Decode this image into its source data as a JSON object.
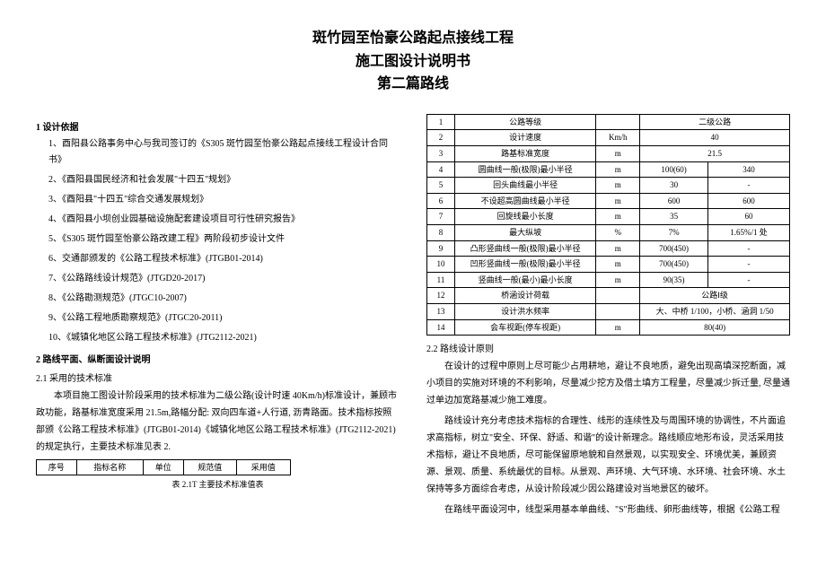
{
  "title": {
    "line1": "斑竹园至怡豪公路起点接线工程",
    "line2": "施工图设计说明书",
    "line3": "第二篇路线"
  },
  "left": {
    "h1": "1 设计依据",
    "items": [
      "1、酉阳县公路事务中心与我司签订的《S305 斑竹园至怡豪公路起点接线工程设计合同书》",
      "2、《酉阳县国民经济和社会发展\"十四五\"规划》",
      "3、《酉阳县\"十四五\"综合交通发展规划》",
      "4、《酉阳县小坝创业园基础设施配套建设项目可行性研究报告》",
      "5、《S305 斑竹园至怡豪公路改建工程》两阶段初步设计文件",
      "6、交通部颁发的《公路工程技术标准》(JTGB01-2014)",
      "7、《公路路线设计规范》(JTGD20-2017)",
      "8、《公路勘测规范》(JTGC10-2007)",
      "9、《公路工程地质勘察规范》(JTGC20-2011)",
      "10、《城镇化地区公路工程技术标准》(JTG2112-2021)"
    ],
    "h2": "2 路线平面、纵断面设计说明",
    "h21": "2.1 采用的技术标准",
    "para1": "本项目施工图设计阶段采用的技术标准为二级公路(设计时速 40Km/h)标准设计，兼顾市政功能，路基标准宽度采用 21.5m,路幅分配: 双向四车道+人行道, 沥青路面。技术指标按照部颁《公路工程技术标准》(JTGB01-2014)《城镇化地区公路工程技术标准》(JTG2112-2021)的规定执行，主要技术标准见表 2.",
    "smallTable": {
      "headers": [
        "序号",
        "指标名称",
        "单位",
        "规范值",
        "采用值"
      ]
    },
    "caption": "表 2.1T 主要技术标准值表"
  },
  "right": {
    "table": {
      "rows": [
        [
          "1",
          "公路等级",
          "",
          "二级公路",
          ""
        ],
        [
          "2",
          "设计速度",
          "Km/h",
          "40",
          ""
        ],
        [
          "3",
          "路基标准宽度",
          "m",
          "21.5",
          ""
        ],
        [
          "4",
          "圆曲线一般(极限)最小半径",
          "m",
          "100(60)",
          "340"
        ],
        [
          "5",
          "回头曲线最小半径",
          "m",
          "30",
          "-"
        ],
        [
          "6",
          "不设超高圆曲线最小半径",
          "m",
          "600",
          "600"
        ],
        [
          "7",
          "回旋线最小长度",
          "m",
          "35",
          "60"
        ],
        [
          "8",
          "最大纵坡",
          "%",
          "7%",
          "1.65%/1 处"
        ],
        [
          "9",
          "凸形竖曲线一般(极限)最小半径",
          "m",
          "700(450)",
          "-"
        ],
        [
          "10",
          "凹形竖曲线一般(极限)最小半径",
          "m",
          "700(450)",
          "-"
        ],
        [
          "11",
          "竖曲线一般(最小)最小长度",
          "m",
          "90(35)",
          "-"
        ],
        [
          "12",
          "桥涵设计荷载",
          "",
          "公路Ⅰ级",
          ""
        ],
        [
          "13",
          "设计洪水频率",
          "",
          "大、中桥 1/100，小桥、涵洞 1/50",
          ""
        ],
        [
          "14",
          "会车视距(停车视距)",
          "m",
          "80(40)",
          ""
        ]
      ]
    },
    "h22": "2.2 路线设计原则",
    "para1": "在设计的过程中原则上尽可能少占用耕地，避让不良地质，避免出现高填深挖断面，减小项目的实施对环境的不利影响，尽量减少挖方及借土填方工程量，尽量减少拆迁量, 尽量通过单边加宽路基减少施工难度。",
    "para2": "路线设计充分考虑技术指标的合理性、线形的连续性及与周围环境的协调性，不片面追求高指标，树立\"安全、环保、舒适、和谐\"的设计新理念。路线顺应地形布设，灵活采用技术指标，避让不良地质，尽可能保留原地貌和自然景观，以实现安全、环境优美，兼顾资源、景观、质量、系统最优的目标。从景观、声环境、大气环境、水环境、社会环境、水土保持等多方面综合考虑，从设计阶段减少因公路建设对当地景区的破坏。",
    "para3": "在路线平面设河中，线型采用基本单曲线、\"S\"形曲线、卵形曲线等，根据《公路工程"
  }
}
